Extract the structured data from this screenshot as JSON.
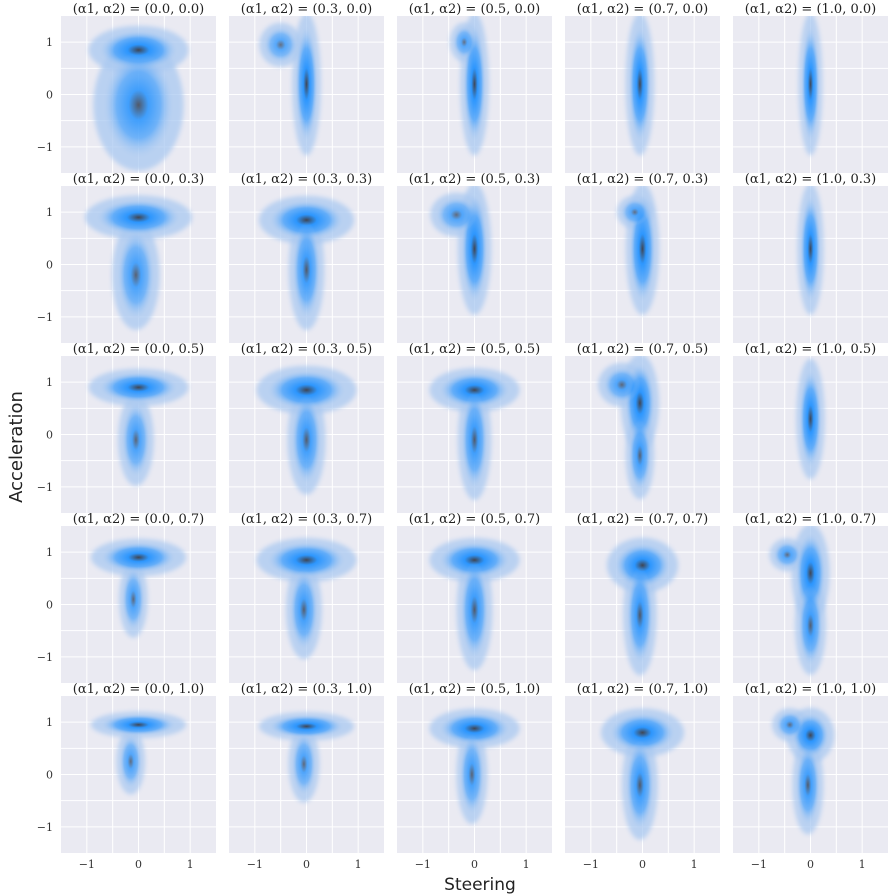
{
  "chart_data": {
    "type": "heatmap",
    "xlabel": "Steering",
    "ylabel": "Acceleration",
    "xlim": [
      -1.5,
      1.5
    ],
    "ylim": [
      -1.5,
      1.5
    ],
    "xticks": [
      -1,
      0,
      1
    ],
    "yticks": [
      -1,
      0,
      1
    ],
    "xtick_labels": [
      "−1",
      "0",
      "1"
    ],
    "ytick_labels": [
      "−1",
      "0",
      "1"
    ],
    "grid": true,
    "colors": {
      "panel_bg": "#eaeaf2",
      "low": "#aac8f0",
      "mid": "#1e90ff",
      "peak": "#3a3e4a",
      "grid": "#ffffff"
    },
    "rows": [
      [
        {
          "title": "(α1, α2) = (0.0, 0.0)",
          "components": [
            {
              "x": 0.0,
              "y": 0.85,
              "sx": 0.42,
              "sy": 0.22,
              "w": 1.0
            },
            {
              "x": 0.0,
              "y": -0.2,
              "sx": 0.38,
              "sy": 0.6,
              "w": 0.7
            }
          ]
        },
        {
          "title": "(α1, α2) = (0.3, 0.0)",
          "components": [
            {
              "x": 0.0,
              "y": 0.2,
              "sx": 0.12,
              "sy": 0.65,
              "w": 1.0
            },
            {
              "x": -0.5,
              "y": 0.95,
              "sx": 0.18,
              "sy": 0.2,
              "w": 0.35
            }
          ]
        },
        {
          "title": "(α1, α2) = (0.5, 0.0)",
          "components": [
            {
              "x": 0.0,
              "y": 0.2,
              "sx": 0.12,
              "sy": 0.65,
              "w": 1.0
            },
            {
              "x": -0.2,
              "y": 1.0,
              "sx": 0.12,
              "sy": 0.18,
              "w": 0.3
            }
          ]
        },
        {
          "title": "(α1, α2) = (0.7, 0.0)",
          "components": [
            {
              "x": -0.05,
              "y": 0.2,
              "sx": 0.12,
              "sy": 0.65,
              "w": 1.0
            }
          ]
        },
        {
          "title": "(α1, α2) = (1.0, 0.0)",
          "components": [
            {
              "x": 0.0,
              "y": 0.2,
              "sx": 0.1,
              "sy": 0.65,
              "w": 1.0
            }
          ]
        }
      ],
      [
        {
          "title": "(α1, α2) = (0.0, 0.3)",
          "components": [
            {
              "x": 0.0,
              "y": 0.9,
              "sx": 0.45,
              "sy": 0.2,
              "w": 1.0
            },
            {
              "x": -0.05,
              "y": -0.2,
              "sx": 0.2,
              "sy": 0.5,
              "w": 0.55
            }
          ]
        },
        {
          "title": "(α1, α2) = (0.3, 0.3)",
          "components": [
            {
              "x": 0.0,
              "y": 0.85,
              "sx": 0.4,
              "sy": 0.22,
              "w": 1.0
            },
            {
              "x": 0.0,
              "y": -0.1,
              "sx": 0.15,
              "sy": 0.55,
              "w": 0.7
            }
          ]
        },
        {
          "title": "(α1, α2) = (0.5, 0.3)",
          "components": [
            {
              "x": 0.0,
              "y": 0.3,
              "sx": 0.14,
              "sy": 0.6,
              "w": 1.0
            },
            {
              "x": -0.35,
              "y": 0.95,
              "sx": 0.22,
              "sy": 0.2,
              "w": 0.4
            }
          ]
        },
        {
          "title": "(α1, α2) = (0.7, 0.3)",
          "components": [
            {
              "x": 0.0,
              "y": 0.3,
              "sx": 0.14,
              "sy": 0.6,
              "w": 1.0
            },
            {
              "x": -0.15,
              "y": 1.0,
              "sx": 0.15,
              "sy": 0.15,
              "w": 0.3
            }
          ]
        },
        {
          "title": "(α1, α2) = (1.0, 0.3)",
          "components": [
            {
              "x": 0.0,
              "y": 0.3,
              "sx": 0.11,
              "sy": 0.6,
              "w": 1.0
            }
          ]
        }
      ],
      [
        {
          "title": "(α1, α2) = (0.0, 0.5)",
          "components": [
            {
              "x": 0.0,
              "y": 0.9,
              "sx": 0.42,
              "sy": 0.17,
              "w": 1.0
            },
            {
              "x": -0.05,
              "y": -0.1,
              "sx": 0.15,
              "sy": 0.42,
              "w": 0.5
            }
          ]
        },
        {
          "title": "(α1, α2) = (0.3, 0.5)",
          "components": [
            {
              "x": 0.0,
              "y": 0.85,
              "sx": 0.42,
              "sy": 0.22,
              "w": 1.0
            },
            {
              "x": 0.0,
              "y": -0.1,
              "sx": 0.16,
              "sy": 0.5,
              "w": 0.65
            }
          ]
        },
        {
          "title": "(α1, α2) = (0.5, 0.5)",
          "components": [
            {
              "x": 0.0,
              "y": 0.85,
              "sx": 0.38,
              "sy": 0.2,
              "w": 1.0
            },
            {
              "x": 0.0,
              "y": -0.1,
              "sx": 0.14,
              "sy": 0.55,
              "w": 0.7
            }
          ]
        },
        {
          "title": "(α1, α2) = (0.7, 0.5)",
          "components": [
            {
              "x": -0.05,
              "y": 0.6,
              "sx": 0.16,
              "sy": 0.45,
              "w": 1.0
            },
            {
              "x": -0.4,
              "y": 0.95,
              "sx": 0.2,
              "sy": 0.2,
              "w": 0.45
            },
            {
              "x": -0.05,
              "y": -0.4,
              "sx": 0.12,
              "sy": 0.4,
              "w": 0.6
            }
          ]
        },
        {
          "title": "(α1, α2) = (1.0, 0.5)",
          "components": [
            {
              "x": 0.0,
              "y": 0.3,
              "sx": 0.12,
              "sy": 0.55,
              "w": 1.0
            }
          ]
        }
      ],
      [
        {
          "title": "(α1, α2) = (0.0, 0.7)",
          "components": [
            {
              "x": 0.0,
              "y": 0.9,
              "sx": 0.4,
              "sy": 0.17,
              "w": 1.0
            },
            {
              "x": -0.1,
              "y": 0.1,
              "sx": 0.12,
              "sy": 0.35,
              "w": 0.45
            }
          ]
        },
        {
          "title": "(α1, α2) = (0.3, 0.7)",
          "components": [
            {
              "x": 0.0,
              "y": 0.85,
              "sx": 0.42,
              "sy": 0.2,
              "w": 1.0
            },
            {
              "x": -0.05,
              "y": -0.1,
              "sx": 0.15,
              "sy": 0.45,
              "w": 0.6
            }
          ]
        },
        {
          "title": "(α1, α2) = (0.5, 0.7)",
          "components": [
            {
              "x": 0.0,
              "y": 0.85,
              "sx": 0.38,
              "sy": 0.2,
              "w": 1.0
            },
            {
              "x": 0.0,
              "y": -0.1,
              "sx": 0.15,
              "sy": 0.55,
              "w": 0.7
            }
          ]
        },
        {
          "title": "(α1, α2) = (0.7, 0.7)",
          "components": [
            {
              "x": 0.0,
              "y": 0.75,
              "sx": 0.3,
              "sy": 0.25,
              "w": 1.0
            },
            {
              "x": -0.05,
              "y": -0.2,
              "sx": 0.14,
              "sy": 0.55,
              "w": 0.75
            }
          ]
        },
        {
          "title": "(α1, α2) = (1.0, 0.7)",
          "components": [
            {
              "x": 0.0,
              "y": 0.6,
              "sx": 0.16,
              "sy": 0.45,
              "w": 1.0
            },
            {
              "x": -0.45,
              "y": 0.95,
              "sx": 0.15,
              "sy": 0.15,
              "w": 0.4
            },
            {
              "x": 0.0,
              "y": -0.4,
              "sx": 0.13,
              "sy": 0.45,
              "w": 0.65
            }
          ]
        }
      ],
      [
        {
          "title": "(α1, α2) = (0.0, 1.0)",
          "components": [
            {
              "x": 0.0,
              "y": 0.95,
              "sx": 0.4,
              "sy": 0.12,
              "w": 1.0
            },
            {
              "x": -0.15,
              "y": 0.25,
              "sx": 0.12,
              "sy": 0.3,
              "w": 0.4
            }
          ]
        },
        {
          "title": "(α1, α2) = (0.3, 1.0)",
          "components": [
            {
              "x": 0.0,
              "y": 0.92,
              "sx": 0.4,
              "sy": 0.13,
              "w": 1.0
            },
            {
              "x": -0.05,
              "y": 0.2,
              "sx": 0.13,
              "sy": 0.35,
              "w": 0.45
            }
          ]
        },
        {
          "title": "(α1, α2) = (0.5, 1.0)",
          "components": [
            {
              "x": 0.0,
              "y": 0.88,
              "sx": 0.38,
              "sy": 0.18,
              "w": 1.0
            },
            {
              "x": -0.05,
              "y": 0.0,
              "sx": 0.13,
              "sy": 0.45,
              "w": 0.55
            }
          ]
        },
        {
          "title": "(α1, α2) = (0.7, 1.0)",
          "components": [
            {
              "x": 0.0,
              "y": 0.8,
              "sx": 0.35,
              "sy": 0.22,
              "w": 1.0
            },
            {
              "x": -0.05,
              "y": -0.2,
              "sx": 0.15,
              "sy": 0.5,
              "w": 0.7
            }
          ]
        },
        {
          "title": "(α1, α2) = (1.0, 1.0)",
          "components": [
            {
              "x": 0.0,
              "y": 0.75,
              "sx": 0.2,
              "sy": 0.25,
              "w": 1.0
            },
            {
              "x": -0.4,
              "y": 0.95,
              "sx": 0.15,
              "sy": 0.15,
              "w": 0.4
            },
            {
              "x": -0.05,
              "y": -0.2,
              "sx": 0.13,
              "sy": 0.45,
              "w": 0.65
            }
          ]
        }
      ]
    ]
  }
}
